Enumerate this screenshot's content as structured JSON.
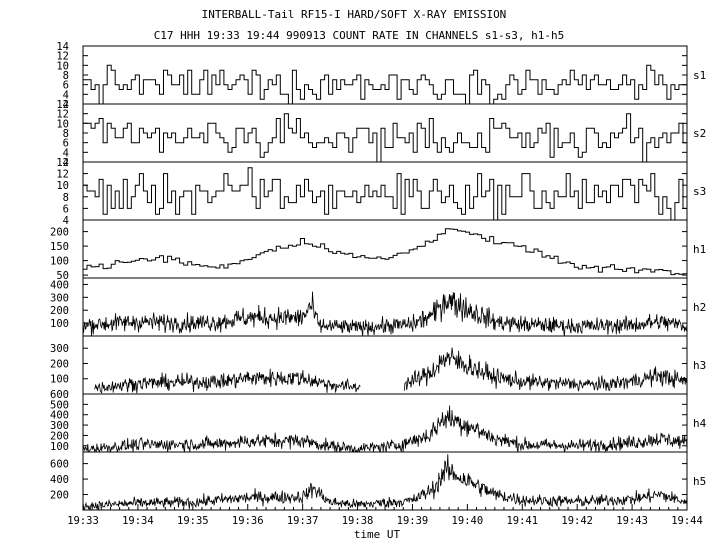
{
  "title": "INTERBALL-Tail RF15-I HARD/SOFT X-RAY EMISSION",
  "subtitle": "C17 HHH 19:33 19:44 990913  COUNT RATE IN CHANNELS s1-s3, h1-h5",
  "chart_data": {
    "type": "line",
    "title": "INTERBALL-Tail RF15-I HARD/SOFT X-RAY EMISSION",
    "subtitle": "C17 HHH 19:33 19:44 990913  COUNT RATE IN CHANNELS s1-s3, h1-h5",
    "xlabel": "time UT",
    "x_ticks": [
      "19:33",
      "19:34",
      "19:35",
      "19:36",
      "19:37",
      "19:38",
      "19:39",
      "19:40",
      "19:41",
      "19:42",
      "19:43",
      "19:44"
    ],
    "xlim": [
      "19:33",
      "19:44"
    ],
    "panels": [
      {
        "name": "s1",
        "style": "step",
        "ylim": [
          2,
          14
        ],
        "yticks": [
          2,
          4,
          6,
          8,
          10,
          12,
          14
        ],
        "baseline": 6,
        "noise": 2.2,
        "features": []
      },
      {
        "name": "s2",
        "style": "step",
        "ylim": [
          2,
          14
        ],
        "yticks": [
          2,
          4,
          6,
          8,
          10,
          12,
          14
        ],
        "baseline": 7,
        "noise": 2.4,
        "features": []
      },
      {
        "name": "s3",
        "style": "step",
        "ylim": [
          4,
          14
        ],
        "yticks": [
          4,
          6,
          8,
          10,
          12,
          14
        ],
        "baseline": 8.5,
        "noise": 2.4,
        "features": []
      },
      {
        "name": "h1",
        "style": "step",
        "ylim": [
          40,
          240
        ],
        "yticks": [
          50,
          100,
          150,
          200
        ],
        "noise": 6,
        "profile": [
          [
            "19:33",
            75
          ],
          [
            "19:34",
            100
          ],
          [
            "19:34.5",
            110
          ],
          [
            "19:35",
            85
          ],
          [
            "19:35.5",
            75
          ],
          [
            "19:36",
            110
          ],
          [
            "19:36.5",
            145
          ],
          [
            "19:37",
            165
          ],
          [
            "19:37.5",
            140
          ],
          [
            "19:38",
            110
          ],
          [
            "19:38.5",
            105
          ],
          [
            "19:39",
            140
          ],
          [
            "19:39.4",
            175
          ],
          [
            "19:39.6",
            220
          ],
          [
            "19:40",
            195
          ],
          [
            "19:40.5",
            160
          ],
          [
            "19:41",
            145
          ],
          [
            "19:41.5",
            110
          ],
          [
            "19:42",
            75
          ],
          [
            "19:42.5",
            70
          ],
          [
            "19:43",
            70
          ],
          [
            "19:43.5",
            65
          ],
          [
            "19:44",
            45
          ]
        ]
      },
      {
        "name": "h2",
        "style": "dense",
        "ylim": [
          0,
          450
        ],
        "yticks": [
          100,
          200,
          300,
          400
        ],
        "noise": 40,
        "profile": [
          [
            "19:33",
            85
          ],
          [
            "19:34",
            110
          ],
          [
            "19:35",
            100
          ],
          [
            "19:35.5",
            110
          ],
          [
            "19:36",
            145
          ],
          [
            "19:37",
            140
          ],
          [
            "19:37.15",
            240
          ],
          [
            "19:37.3",
            80
          ],
          [
            "19:38",
            65
          ],
          [
            "19:39",
            90
          ],
          [
            "19:39.4",
            170
          ],
          [
            "19:39.6",
            290
          ],
          [
            "19:40",
            210
          ],
          [
            "19:40.5",
            110
          ],
          [
            "19:41",
            90
          ],
          [
            "19:42",
            75
          ],
          [
            "19:43",
            85
          ],
          [
            "19:43.5",
            110
          ],
          [
            "19:44",
            80
          ]
        ]
      },
      {
        "name": "h3",
        "style": "dense",
        "ylim": [
          0,
          380
        ],
        "yticks": [
          100,
          200,
          300
        ],
        "noise": 30,
        "gap": [
          "19:38.05",
          "19:38.85"
        ],
        "profile": [
          [
            "19:33.2",
            40
          ],
          [
            "19:34",
            70
          ],
          [
            "19:35",
            80
          ],
          [
            "19:35.5",
            80
          ],
          [
            "19:36",
            105
          ],
          [
            "19:37",
            105
          ],
          [
            "19:37.5",
            60
          ],
          [
            "19:38",
            45
          ],
          [
            "19:38.9",
            70
          ],
          [
            "19:39.3",
            130
          ],
          [
            "19:39.6",
            240
          ],
          [
            "19:40",
            190
          ],
          [
            "19:40.5",
            110
          ],
          [
            "19:41",
            80
          ],
          [
            "19:42",
            65
          ],
          [
            "19:42.5",
            60
          ],
          [
            "19:43",
            85
          ],
          [
            "19:43.5",
            120
          ],
          [
            "19:44",
            80
          ]
        ]
      },
      {
        "name": "h4",
        "style": "dense",
        "ylim": [
          40,
          600
        ],
        "yticks": [
          100,
          200,
          300,
          400,
          500,
          600
        ],
        "noise": 40,
        "profile": [
          [
            "19:33",
            65
          ],
          [
            "19:34",
            110
          ],
          [
            "19:35",
            115
          ],
          [
            "19:35.5",
            120
          ],
          [
            "19:36",
            145
          ],
          [
            "19:37",
            150
          ],
          [
            "19:37.5",
            95
          ],
          [
            "19:38",
            70
          ],
          [
            "19:38.7",
            100
          ],
          [
            "19:39.3",
            200
          ],
          [
            "19:39.6",
            380
          ],
          [
            "19:40",
            300
          ],
          [
            "19:40.5",
            170
          ],
          [
            "19:41",
            110
          ],
          [
            "19:42",
            100
          ],
          [
            "19:43",
            130
          ],
          [
            "19:43.5",
            170
          ],
          [
            "19:44",
            130
          ]
        ]
      },
      {
        "name": "h5",
        "style": "dense",
        "ylim": [
          0,
          750
        ],
        "yticks": [
          200,
          400,
          600
        ],
        "noise": 50,
        "profile": [
          [
            "19:33",
            50
          ],
          [
            "19:34",
            90
          ],
          [
            "19:35",
            100
          ],
          [
            "19:36",
            160
          ],
          [
            "19:37",
            170
          ],
          [
            "19:37.2",
            280
          ],
          [
            "19:37.5",
            100
          ],
          [
            "19:38",
            70
          ],
          [
            "19:39",
            120
          ],
          [
            "19:39.4",
            280
          ],
          [
            "19:39.6",
            520
          ],
          [
            "19:40",
            380
          ],
          [
            "19:40.5",
            200
          ],
          [
            "19:41",
            130
          ],
          [
            "19:42",
            110
          ],
          [
            "19:43",
            140
          ],
          [
            "19:43.5",
            200
          ],
          [
            "19:44",
            100
          ]
        ]
      }
    ],
    "grid": false,
    "legend": "channel names at right of each panel"
  }
}
